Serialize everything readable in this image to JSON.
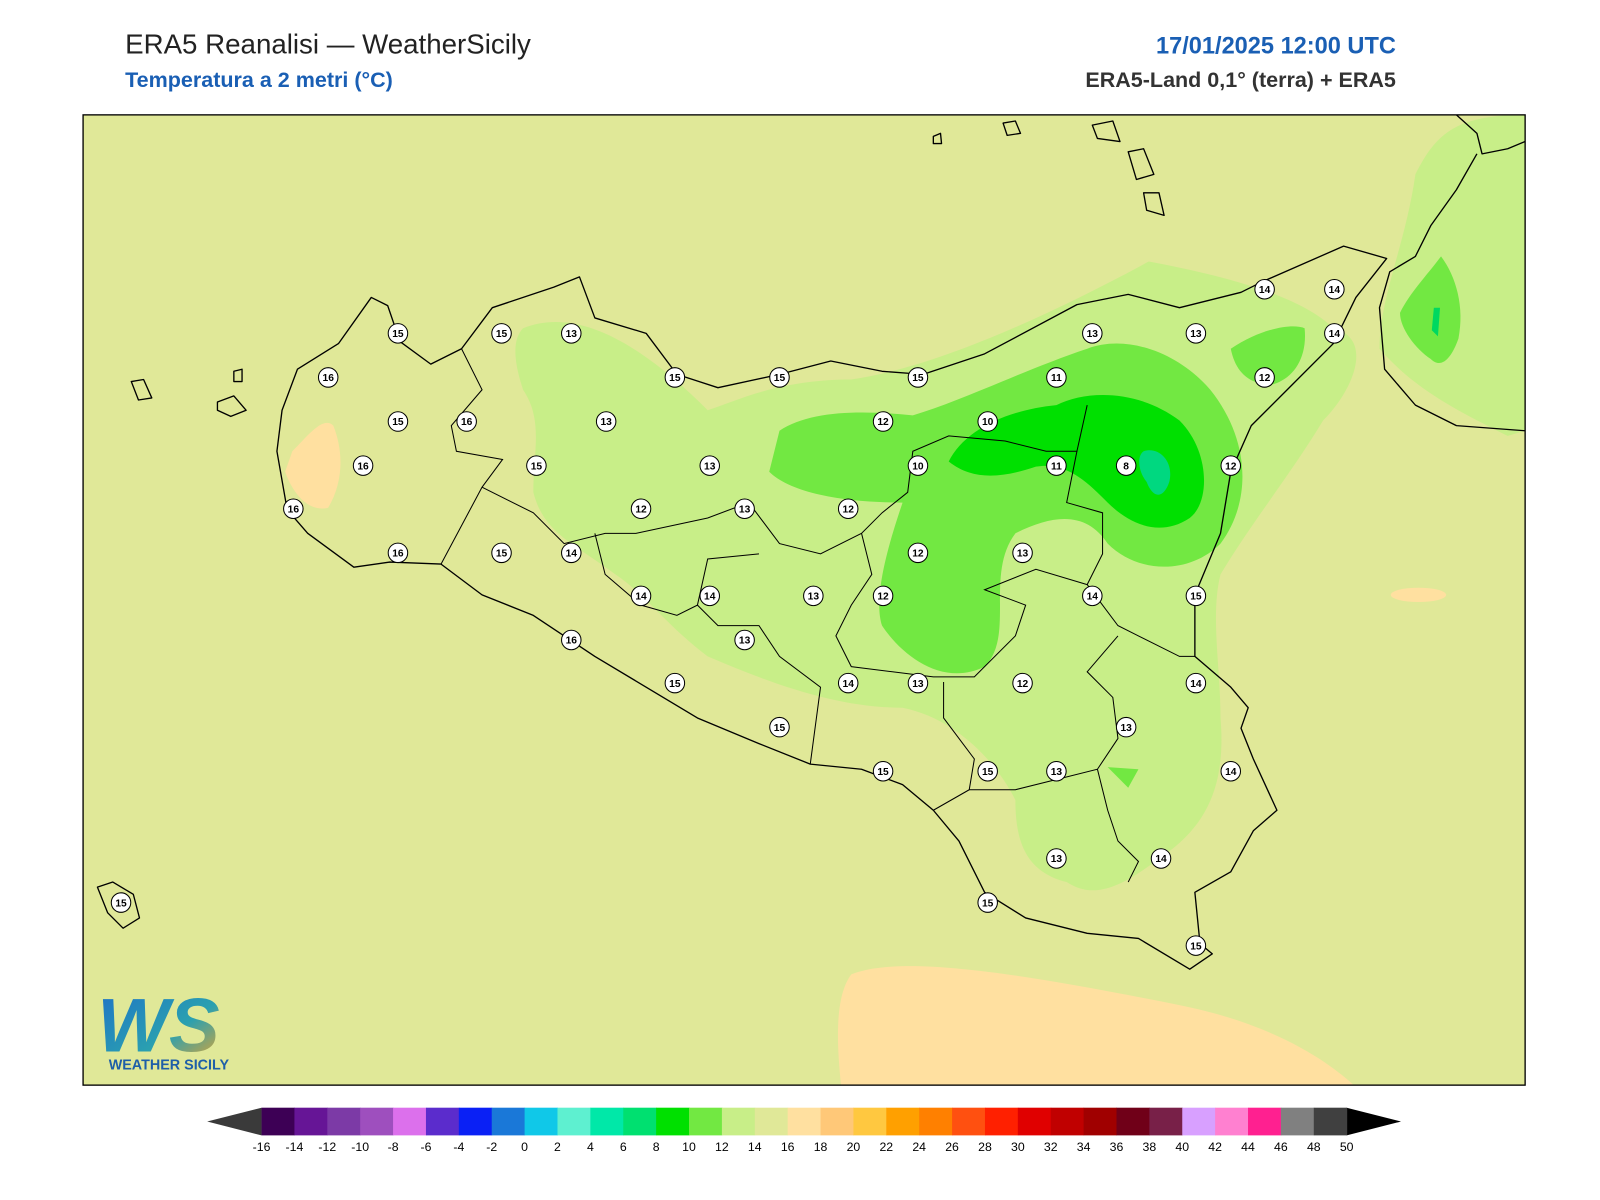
{
  "header": {
    "title": "ERA5 Reanalisi — WeatherSicily",
    "subtitle": "Temperatura a 2 metri (°C)",
    "datetime": "17/01/2025 12:00 UTC",
    "source": "ERA5-Land 0,1° (terra) + ERA5"
  },
  "stations": [
    15,
    15,
    13,
    16,
    15,
    15,
    15,
    13,
    13,
    14,
    14,
    14,
    11,
    12,
    15,
    16,
    13,
    12,
    10,
    16,
    15,
    13,
    10,
    11,
    8,
    12,
    16,
    12,
    13,
    12,
    16,
    15,
    14,
    12,
    13,
    14,
    14,
    13,
    12,
    14,
    15,
    16,
    13,
    15,
    14,
    13,
    12,
    14,
    15,
    13,
    15,
    15,
    13,
    14,
    13,
    14,
    15,
    15,
    15
  ],
  "colorbar": {
    "ticks": [
      -16,
      -14,
      -12,
      -10,
      -8,
      -6,
      -4,
      -2,
      0,
      2,
      4,
      6,
      8,
      10,
      12,
      14,
      16,
      18,
      20,
      22,
      24,
      26,
      28,
      30,
      32,
      34,
      36,
      38,
      40,
      42,
      44,
      46,
      48,
      50
    ],
    "colors": [
      "#3d0055",
      "#661596",
      "#7c3aa6",
      "#9e4fbe",
      "#dc70ec",
      "#5b2ccc",
      "#0a20f5",
      "#1a78d8",
      "#10c8e8",
      "#5ef0d0",
      "#00e8a8",
      "#00e070",
      "#00e000",
      "#72e842",
      "#c8ee88",
      "#e0e898",
      "#ffe0a0",
      "#ffc878",
      "#ffc840",
      "#ffa000",
      "#ff8000",
      "#ff5010",
      "#ff2000",
      "#e00000",
      "#c00000",
      "#a00000",
      "#700018",
      "#782048",
      "#d8a0ff",
      "#ff80d0",
      "#ff2090",
      "#808080",
      "#404040"
    ],
    "under_color": "#3a3a3a",
    "over_color": "#000000"
  },
  "logo": {
    "mark": "WS",
    "text": "WEATHER SICILY"
  }
}
